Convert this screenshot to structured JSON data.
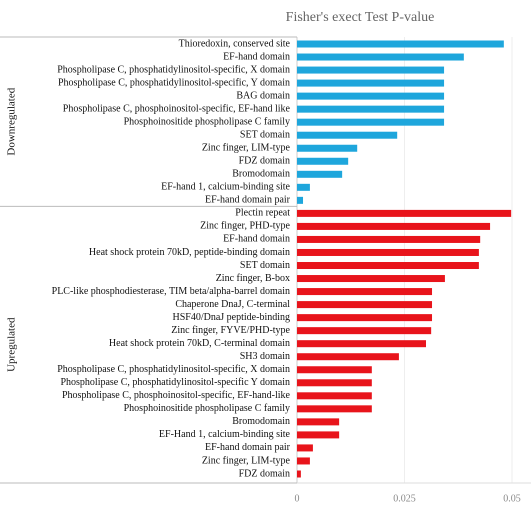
{
  "chart_data": {
    "type": "bar",
    "orientation": "horizontal",
    "title": "Fisher's exect Test P-value",
    "xlim": [
      0,
      0.05
    ],
    "xticks": [
      0,
      0.025,
      0.05
    ],
    "groups": [
      {
        "name": "Downregulated",
        "color": "#1ea6dc",
        "categories": [
          "Thioredoxin, conserved site",
          "EF-hand domain",
          "Phospholipase C, phosphatidylinositol-specific, X domain",
          "Phospholipase C, phosphatidylinositol-specific, Y domain",
          "BAG domain",
          "Phospholipase C, phosphoinositol-specific, EF-hand like",
          "Phosphoinositide phospholipase C family",
          "SET domain",
          "Zinc finger, LIM-type",
          "FDZ domain",
          "Bromodomain",
          "EF-hand 1, calcium-binding site",
          "EF-hand domain pair"
        ],
        "values": [
          0.0481,
          0.0388,
          0.0342,
          0.0342,
          0.0342,
          0.0342,
          0.0342,
          0.0233,
          0.014,
          0.0119,
          0.0105,
          0.003,
          0.0014
        ]
      },
      {
        "name": "Upregulated",
        "color": "#e8141b",
        "categories": [
          "Plectin repeat",
          "Zinc finger, PHD-type",
          "EF-hand domain",
          "Heat shock protein 70kD, peptide-binding domain",
          "SET domain",
          "Zinc finger, B-box",
          "PLC-like phosphodiesterase, TIM beta/alpha-barrel domain",
          "Chaperone DnaJ, C-terminal",
          "HSF40/DnaJ peptide-binding",
          "Zinc finger, FYVE/PHD-type",
          "Heat shock protein 70kD, C-terminal domain",
          "SH3 domain",
          "Phospholipase C, phosphatidylinositol-specific, X domain",
          "Phospholipase C, phosphatidylinositol-specific Y domain",
          "Phospholipase C, phosphoinositol-specific, EF-hand-like",
          "Phosphoinositide phospholipase C family",
          "Bromodomain",
          "EF-Hand 1, calcium-binding site",
          "EF-hand domain pair",
          "Zinc finger, LIM-type",
          "FDZ domain"
        ],
        "values": [
          0.0498,
          0.0449,
          0.0426,
          0.0423,
          0.0423,
          0.0344,
          0.0314,
          0.0314,
          0.0314,
          0.0312,
          0.03,
          0.0237,
          0.0174,
          0.0174,
          0.0174,
          0.0174,
          0.0098,
          0.0098,
          0.0037,
          0.003,
          0.0009
        ]
      }
    ]
  }
}
